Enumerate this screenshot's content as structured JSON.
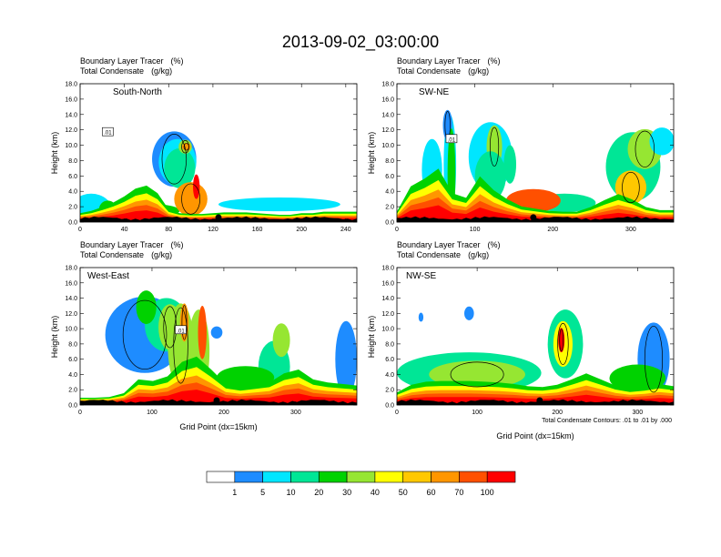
{
  "title": "2013-09-02_03:00:00",
  "chart_data": {
    "type": "filled_contour_cross_sections",
    "field_main": "Boundary Layer Tracer",
    "field_main_units": "(%)",
    "field_overlay": "Total Condensate",
    "field_overlay_units": "(g/kg)",
    "ylabel": "Height (km)",
    "xlabel": "Grid Point (dx=15km)",
    "ylim": [
      0,
      18
    ],
    "yticks": [
      "0.0",
      "2.0",
      "4.0",
      "6.0",
      "8.0",
      "10.0",
      "12.0",
      "14.0",
      "16.0",
      "18.0"
    ],
    "contour_note": "Total Condensate Contours: .01 to .01 by .000",
    "contour_label": ".01",
    "colorbar": {
      "levels": [
        "1",
        "5",
        "10",
        "20",
        "30",
        "40",
        "50",
        "60",
        "70",
        "100"
      ],
      "colors": [
        "#ffffff",
        "#1e8cff",
        "#00e6ff",
        "#00e696",
        "#00d200",
        "#96e632",
        "#ffff00",
        "#ffc800",
        "#ff9600",
        "#ff5000",
        "#ff0000"
      ]
    },
    "panels": [
      {
        "name": "South-North",
        "xmax": 250,
        "xticks": [
          "0",
          "40",
          "80",
          "120",
          "160",
          "200",
          "240"
        ],
        "xtick_values": [
          0,
          40,
          80,
          120,
          160,
          200,
          240
        ],
        "marker_x": 125,
        "blobs": [
          {
            "x": 10,
            "y": 1.2,
            "rx": 20,
            "ry": 2.5,
            "c": 2
          },
          {
            "x": 25,
            "y": 1.6,
            "rx": 8,
            "ry": 1.2,
            "c": 4
          },
          {
            "x": 85,
            "y": 8.2,
            "rx": 20,
            "ry": 3.6,
            "c": 1
          },
          {
            "x": 88,
            "y": 7.8,
            "rx": 17,
            "ry": 3.0,
            "c": 2
          },
          {
            "x": 90,
            "y": 7.0,
            "rx": 14,
            "ry": 2.6,
            "c": 3
          },
          {
            "x": 95,
            "y": 9.8,
            "rx": 6,
            "ry": 0.9,
            "c": 5
          },
          {
            "x": 96,
            "y": 9.8,
            "rx": 4,
            "ry": 0.5,
            "c": 8
          },
          {
            "x": 180,
            "y": 2.3,
            "rx": 55,
            "ry": 0.9,
            "c": 2
          },
          {
            "x": 60,
            "y": 1.5,
            "rx": 30,
            "ry": 0.9,
            "c": 4
          },
          {
            "x": 100,
            "y": 3.0,
            "rx": 15,
            "ry": 2.2,
            "c": 8
          },
          {
            "x": 105,
            "y": 4.6,
            "rx": 3,
            "ry": 1.6,
            "c": 10
          }
        ],
        "base_ridge": [
          1.0,
          1.3,
          1.8,
          2.4,
          3.2,
          4.2,
          4.6,
          3.6,
          1.5,
          1.0,
          0.9,
          0.9,
          1.0,
          1.1,
          1.1,
          1.1,
          1.0,
          0.9,
          0.8,
          0.8,
          1.0,
          1.0,
          1.2,
          1.2,
          1.2,
          1.2
        ],
        "contour_label_x": 25,
        "contour_label_y": 11.7
      },
      {
        "name": "SW-NE",
        "xmax": 355,
        "xticks": [
          "0",
          "100",
          "200",
          "300"
        ],
        "xtick_values": [
          0,
          100,
          200,
          300
        ],
        "marker_x": 175,
        "blobs": [
          {
            "x": 45,
            "y": 6.8,
            "rx": 13,
            "ry": 4.0,
            "c": 2
          },
          {
            "x": 68,
            "y": 7.5,
            "rx": 8,
            "ry": 6.5,
            "c": 2
          },
          {
            "x": 65,
            "y": 12.6,
            "rx": 6,
            "ry": 2.0,
            "c": 1
          },
          {
            "x": 70,
            "y": 6.2,
            "rx": 5,
            "ry": 6.0,
            "c": 4
          },
          {
            "x": 120,
            "y": 8.5,
            "rx": 28,
            "ry": 4.5,
            "c": 2
          },
          {
            "x": 125,
            "y": 9.8,
            "rx": 10,
            "ry": 2.8,
            "c": 5
          },
          {
            "x": 120,
            "y": 6.0,
            "rx": 20,
            "ry": 3.2,
            "c": 3
          },
          {
            "x": 145,
            "y": 7.5,
            "rx": 8,
            "ry": 2.5,
            "c": 3
          },
          {
            "x": 303,
            "y": 7.2,
            "rx": 35,
            "ry": 4.5,
            "c": 3
          },
          {
            "x": 318,
            "y": 9.5,
            "rx": 22,
            "ry": 2.6,
            "c": 5
          },
          {
            "x": 340,
            "y": 10.5,
            "rx": 16,
            "ry": 1.8,
            "c": 2
          },
          {
            "x": 300,
            "y": 4.5,
            "rx": 20,
            "ry": 2.2,
            "c": 7
          },
          {
            "x": 215,
            "y": 2.5,
            "rx": 40,
            "ry": 1.2,
            "c": 3
          },
          {
            "x": 175,
            "y": 2.8,
            "rx": 35,
            "ry": 1.5,
            "c": 9
          }
        ],
        "base_ridge": [
          1.2,
          4.5,
          5.5,
          6.8,
          3.6,
          3.0,
          5.8,
          4.0,
          2.8,
          1.9,
          1.6,
          1.3,
          1.2,
          1.2,
          1.8,
          2.7,
          3.5,
          2.8,
          1.8,
          1.4,
          1.4
        ],
        "contour_label_x": 70,
        "contour_label_y": 10.8
      },
      {
        "name": "West-East",
        "xmax": 385,
        "xticks": [
          "0",
          "100",
          "200",
          "300"
        ],
        "xtick_values": [
          0,
          100,
          200,
          300
        ],
        "marker_x": 190,
        "blobs": [
          {
            "x": 90,
            "y": 9.2,
            "rx": 55,
            "ry": 5.0,
            "c": 1
          },
          {
            "x": 120,
            "y": 10.5,
            "rx": 30,
            "ry": 3.5,
            "c": 3
          },
          {
            "x": 125,
            "y": 10.2,
            "rx": 16,
            "ry": 3.0,
            "c": 5
          },
          {
            "x": 140,
            "y": 7.8,
            "rx": 18,
            "ry": 5.5,
            "c": 5
          },
          {
            "x": 145,
            "y": 10.8,
            "rx": 6,
            "ry": 2.5,
            "c": 8
          },
          {
            "x": 165,
            "y": 7.0,
            "rx": 15,
            "ry": 5.5,
            "c": 5
          },
          {
            "x": 170,
            "y": 9.5,
            "rx": 6,
            "ry": 3.5,
            "c": 9
          },
          {
            "x": 270,
            "y": 5.0,
            "rx": 22,
            "ry": 3.4,
            "c": 3
          },
          {
            "x": 280,
            "y": 8.5,
            "rx": 12,
            "ry": 2.2,
            "c": 5
          },
          {
            "x": 370,
            "y": 6.0,
            "rx": 15,
            "ry": 5.0,
            "c": 1
          },
          {
            "x": 92,
            "y": 12.8,
            "rx": 14,
            "ry": 2.2,
            "c": 4
          },
          {
            "x": 190,
            "y": 9.5,
            "rx": 8,
            "ry": 0.8,
            "c": 1
          },
          {
            "x": 230,
            "y": 3.6,
            "rx": 40,
            "ry": 1.5,
            "c": 4
          }
        ],
        "base_ridge": [
          0.8,
          0.8,
          0.9,
          1.4,
          3.2,
          3.0,
          3.6,
          5.5,
          6.2,
          4.5,
          2.6,
          2.2,
          2.5,
          2.8,
          4.0,
          4.5,
          3.2,
          2.8,
          2.6,
          2.4
        ],
        "contour_label_x": 140,
        "contour_label_y": 9.8
      },
      {
        "name": "NW-SE",
        "xmax": 345,
        "xticks": [
          "0",
          "100",
          "200",
          "300"
        ],
        "xtick_values": [
          0,
          100,
          200,
          300
        ],
        "marker_x": 178,
        "blobs": [
          {
            "x": 90,
            "y": 4.2,
            "rx": 90,
            "ry": 2.7,
            "c": 3
          },
          {
            "x": 100,
            "y": 4.0,
            "rx": 60,
            "ry": 1.8,
            "c": 5
          },
          {
            "x": 210,
            "y": 8.0,
            "rx": 22,
            "ry": 4.5,
            "c": 3
          },
          {
            "x": 207,
            "y": 8.0,
            "rx": 12,
            "ry": 3.0,
            "c": 6
          },
          {
            "x": 205,
            "y": 8.5,
            "rx": 4,
            "ry": 1.6,
            "c": 10
          },
          {
            "x": 320,
            "y": 6.0,
            "rx": 20,
            "ry": 4.8,
            "c": 1
          },
          {
            "x": 300,
            "y": 3.5,
            "rx": 35,
            "ry": 1.8,
            "c": 4
          },
          {
            "x": 30,
            "y": 11.5,
            "rx": 3,
            "ry": 0.6,
            "c": 1
          },
          {
            "x": 90,
            "y": 12.0,
            "rx": 6,
            "ry": 0.9,
            "c": 1
          }
        ],
        "base_ridge": [
          1.5,
          2.5,
          2.9,
          3.0,
          3.0,
          3.0,
          2.9,
          2.8,
          2.6,
          2.3,
          2.2,
          2.5,
          3.2,
          4.0,
          3.2,
          2.4,
          2.0,
          2.2,
          2.6,
          2.3
        ],
        "contour_label_x": 0,
        "contour_label_y": 0
      }
    ]
  }
}
